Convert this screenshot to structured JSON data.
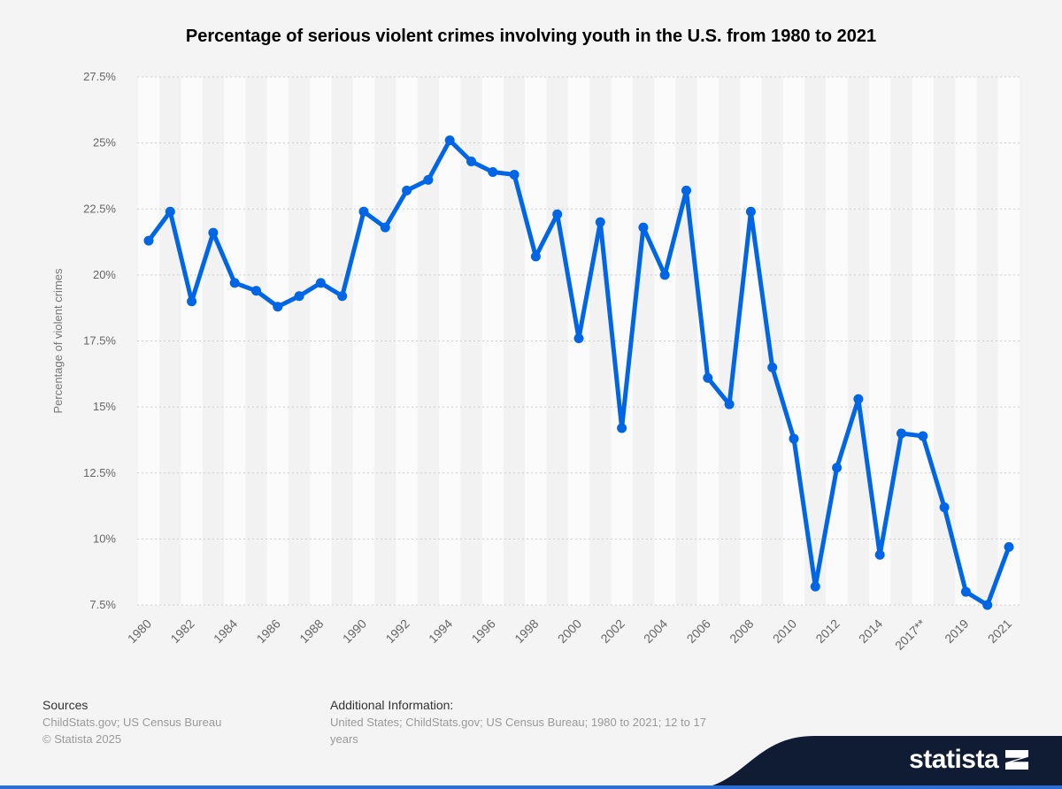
{
  "chart_data": {
    "type": "line",
    "title": "Percentage of serious violent crimes involving youth in the U.S. from 1980 to 2021",
    "ylabel": "Percentage of violent crimes",
    "xlabel": "",
    "categories": [
      "1980",
      "1981",
      "1982",
      "1983",
      "1984",
      "1985",
      "1986",
      "1987",
      "1988",
      "1989",
      "1990",
      "1991",
      "1992",
      "1993",
      "1994",
      "1995",
      "1996",
      "1997",
      "1998",
      "1999",
      "2000",
      "2001",
      "2002",
      "2003",
      "2004",
      "2005",
      "2006",
      "2007",
      "2008",
      "2009",
      "2010",
      "2011",
      "2012",
      "2013",
      "2014",
      "2016",
      "2017**",
      "2018",
      "2019",
      "2020",
      "2021"
    ],
    "tick_labels": [
      "1980",
      "1982",
      "1984",
      "1986",
      "1988",
      "1990",
      "1992",
      "1994",
      "1996",
      "1998",
      "2000",
      "2002",
      "2004",
      "2006",
      "2008",
      "2010",
      "2012",
      "2014",
      "2017**",
      "2019",
      "2021"
    ],
    "values": [
      21.3,
      22.4,
      19.0,
      21.6,
      19.7,
      19.4,
      18.8,
      19.2,
      19.7,
      19.2,
      22.4,
      21.8,
      23.2,
      23.6,
      25.1,
      24.3,
      23.9,
      23.8,
      20.7,
      22.3,
      17.6,
      22.0,
      14.2,
      21.8,
      20.0,
      23.2,
      16.1,
      15.1,
      22.4,
      16.5,
      13.8,
      8.2,
      12.7,
      15.3,
      9.4,
      14.0,
      13.9,
      11.2,
      8.0,
      7.5,
      9.7
    ],
    "ylim": [
      7.5,
      27.5
    ],
    "yticks": [
      "7.5%",
      "10%",
      "12.5%",
      "15%",
      "17.5%",
      "20%",
      "22.5%",
      "25%",
      "27.5%"
    ],
    "grid": true,
    "line_color": "#0066e6"
  },
  "footer": {
    "sources_heading": "Sources",
    "sources_text": "ChildStats.gov; US Census Bureau",
    "copyright": "© Statista 2025",
    "additional_heading": "Additional Information:",
    "additional_text": "United States; ChildStats.gov; US Census Bureau; 1980 to 2021; 12 to 17 years"
  },
  "brand": "statista"
}
